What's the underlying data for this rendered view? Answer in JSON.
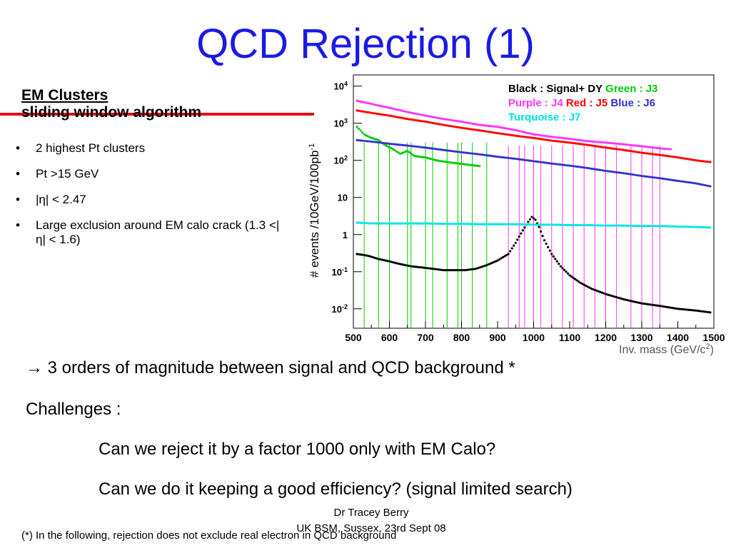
{
  "slide": {
    "title": "QCD Rejection (1)",
    "section_heading": "EM Clusters",
    "section_subheading": "sliding window algorithm",
    "bullets": [
      "2 highest Pt clusters",
      "Pt >15 GeV",
      "|η| < 2.47",
      "Large exclusion around EM calo crack (1.3 <|η| < 1.6)"
    ],
    "conclusion": "→ 3 orders of magnitude between signal and QCD background *",
    "challenges_label": "Challenges :",
    "question_1": "Can we reject it by a factor 1000 only with EM Calo?",
    "question_2": "Can we do it keeping a good efficiency? (signal limited search)",
    "author": "Dr Tracey Berry",
    "event": "UK BSM, Sussex, 23rd Sept 08",
    "footnote": "(*) In the following, rejection does not exclude real electron in QCD background",
    "title_color": "#1a1ae6",
    "accent_line_color": "#e01010"
  },
  "chart_data": {
    "type": "scatter",
    "title": "",
    "xlabel": "Inv. mass (GeV/c2)",
    "ylabel": "# events /10GeV/100pb-1",
    "xlim": [
      500,
      1500
    ],
    "ylim": [
      0.003,
      20000
    ],
    "log_y": true,
    "grid": false,
    "x_ticks": [
      "500",
      "600",
      "700",
      "800",
      "900",
      "1000",
      "1100",
      "1200",
      "1300",
      "1400",
      "1500"
    ],
    "y_ticks": [
      {
        "value": 10000,
        "base": "10",
        "exp": "4"
      },
      {
        "value": 1000,
        "base": "10",
        "exp": "3"
      },
      {
        "value": 100,
        "base": "10",
        "exp": "2"
      },
      {
        "value": 10,
        "base": "10",
        "exp": ""
      },
      {
        "value": 1,
        "base": "1",
        "exp": ""
      },
      {
        "value": 0.1,
        "base": "10",
        "exp": "-1"
      },
      {
        "value": 0.01,
        "base": "10",
        "exp": "-2"
      }
    ],
    "legend": {
      "placement": "top-right",
      "rows": [
        [
          {
            "text": "Black : Signal+ DY",
            "color": "#000000"
          },
          {
            "text": "Green : J3",
            "color": "#00cc00"
          }
        ],
        [
          {
            "text": "Purple : J4",
            "color": "#ff33ff"
          },
          {
            "text": "Red : J5",
            "color": "#ff0000"
          },
          {
            "text": "Blue : J6",
            "color": "#3333cc"
          }
        ],
        [
          {
            "text": "Turquoise : J7",
            "color": "#00e5e5"
          }
        ]
      ]
    },
    "series": [
      {
        "name": "Black : Signal+ DY",
        "color": "#000000",
        "x": [
          510,
          540,
          570,
          600,
          630,
          660,
          690,
          720,
          750,
          780,
          810,
          840,
          870,
          900,
          930,
          950,
          970,
          985,
          995,
          1005,
          1015,
          1030,
          1050,
          1075,
          1100,
          1130,
          1160,
          1200,
          1250,
          1300,
          1350,
          1400,
          1450,
          1490
        ],
        "y": [
          0.3,
          0.27,
          0.22,
          0.19,
          0.16,
          0.14,
          0.13,
          0.12,
          0.11,
          0.11,
          0.11,
          0.12,
          0.15,
          0.2,
          0.3,
          0.6,
          1.3,
          2.2,
          3.0,
          2.5,
          1.6,
          0.7,
          0.3,
          0.14,
          0.08,
          0.05,
          0.035,
          0.025,
          0.018,
          0.014,
          0.012,
          0.01,
          0.009,
          0.008
        ]
      },
      {
        "name": "Green : J3",
        "color": "#00cc00",
        "x": [
          510,
          530,
          550,
          570,
          590,
          610,
          630,
          650,
          670,
          700,
          730,
          760,
          800,
          850
        ],
        "y": [
          800,
          500,
          400,
          350,
          250,
          200,
          150,
          180,
          130,
          120,
          100,
          90,
          80,
          70
        ]
      },
      {
        "name": "Purple : J4",
        "color": "#ff33ff",
        "x": [
          510,
          540,
          570,
          600,
          650,
          700,
          750,
          800,
          850,
          900,
          950,
          1000,
          1050,
          1100,
          1150,
          1200,
          1250,
          1300,
          1350,
          1380
        ],
        "y": [
          4000,
          3500,
          3000,
          2600,
          2000,
          1600,
          1300,
          1100,
          900,
          800,
          650,
          500,
          430,
          380,
          330,
          300,
          270,
          240,
          210,
          200
        ]
      },
      {
        "name": "Red : J5",
        "color": "#ff0000",
        "x": [
          510,
          550,
          600,
          650,
          700,
          750,
          800,
          850,
          900,
          950,
          1000,
          1050,
          1100,
          1150,
          1200,
          1250,
          1300,
          1350,
          1400,
          1450,
          1490
        ],
        "y": [
          2200,
          1900,
          1600,
          1300,
          1100,
          900,
          750,
          640,
          540,
          460,
          400,
          340,
          300,
          260,
          220,
          190,
          160,
          140,
          120,
          100,
          90
        ]
      },
      {
        "name": "Blue : J6",
        "color": "#3333cc",
        "x": [
          510,
          550,
          600,
          650,
          700,
          750,
          800,
          850,
          900,
          950,
          1000,
          1050,
          1100,
          1150,
          1200,
          1250,
          1300,
          1350,
          1400,
          1450,
          1490
        ],
        "y": [
          350,
          320,
          280,
          250,
          220,
          190,
          165,
          145,
          125,
          110,
          95,
          82,
          72,
          62,
          52,
          45,
          38,
          33,
          28,
          24,
          20
        ]
      },
      {
        "name": "Turquoise : J7",
        "color": "#00e5e5",
        "x": [
          510,
          550,
          600,
          650,
          700,
          750,
          800,
          850,
          900,
          950,
          1000,
          1050,
          1100,
          1150,
          1200,
          1250,
          1300,
          1350,
          1400,
          1450,
          1490
        ],
        "y": [
          2.1,
          2.0,
          2.0,
          2.0,
          2.0,
          1.95,
          1.95,
          1.9,
          1.9,
          1.9,
          1.85,
          1.85,
          1.8,
          1.8,
          1.75,
          1.75,
          1.7,
          1.7,
          1.65,
          1.6,
          1.55
        ]
      }
    ]
  }
}
